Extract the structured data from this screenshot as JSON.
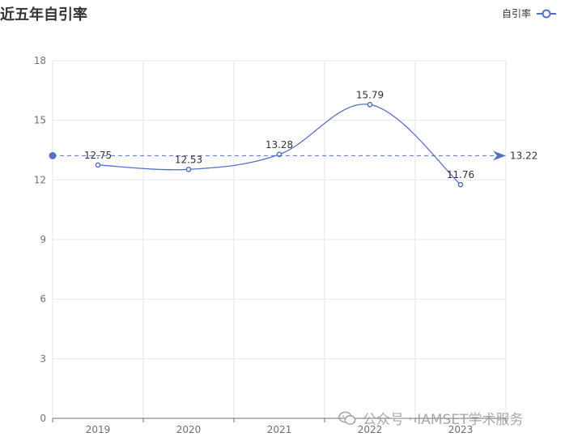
{
  "chart_data": {
    "type": "line",
    "title": "近五年自引率",
    "categories": [
      "2019",
      "2020",
      "2021",
      "2022",
      "2023"
    ],
    "series": [
      {
        "name": "自引率",
        "values": [
          12.75,
          12.53,
          13.28,
          15.79,
          11.76
        ],
        "color": "#5470c6",
        "smooth": true
      }
    ],
    "y_ticks": [
      0,
      3,
      6,
      9,
      12,
      15,
      18
    ],
    "ylim": [
      0,
      18
    ],
    "average_line": {
      "value": 13.22,
      "label": "13.22",
      "color": "#5470c6",
      "style": "dashed"
    },
    "grid": true,
    "legend_position": "top-right",
    "xlabel": "",
    "ylabel": ""
  },
  "watermark": {
    "text": "公众号 · IAMSET学术服务",
    "icon": "wechat-icon"
  }
}
